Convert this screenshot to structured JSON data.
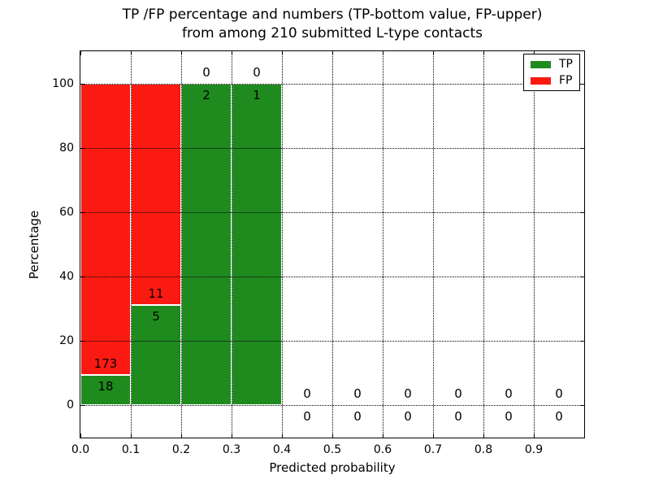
{
  "figure": {
    "title_line1": "TP /FP percentage and numbers (TP-bottom value, FP-upper)",
    "title_line2": "from among 210 submitted L-type contacts"
  },
  "legend": {
    "position": "upper right",
    "tp_label": "TP",
    "fp_label": "FP"
  },
  "chart_data": {
    "type": "bar",
    "stacked": true,
    "title": "TP /FP percentage and numbers (TP-bottom value, FP-upper) from among 210 submitted L-type contacts",
    "xlabel": "Predicted probability",
    "ylabel": "Percentage",
    "xlim": [
      0.0,
      1.0
    ],
    "ylim": [
      -10,
      110
    ],
    "bin_width": 0.1,
    "x_tick_labels": [
      "0.0",
      "0.1",
      "0.2",
      "0.3",
      "0.4",
      "0.5",
      "0.6",
      "0.7",
      "0.8",
      "0.9"
    ],
    "y_tick_values": [
      0,
      20,
      40,
      60,
      80,
      100
    ],
    "grid": {
      "style": "dotted",
      "color": "#000000",
      "on": true
    },
    "total_contacts": 210,
    "categories": [
      "0.0-0.1",
      "0.1-0.2",
      "0.2-0.3",
      "0.3-0.4",
      "0.4-0.5",
      "0.5-0.6",
      "0.6-0.7",
      "0.7-0.8",
      "0.8-0.9",
      "0.9-1.0"
    ],
    "series": [
      {
        "name": "TP",
        "color": "#1f8b1f",
        "counts": [
          18,
          5,
          2,
          1,
          0,
          0,
          0,
          0,
          0,
          0
        ],
        "pct": [
          9.42,
          31.25,
          100,
          100,
          0,
          0,
          0,
          0,
          0,
          0
        ]
      },
      {
        "name": "FP",
        "color": "#fb1a12",
        "counts": [
          173,
          11,
          0,
          0,
          0,
          0,
          0,
          0,
          0,
          0
        ],
        "pct": [
          90.58,
          68.75,
          0,
          0,
          0,
          0,
          0,
          0,
          0,
          0
        ]
      }
    ],
    "legend_position": "upper right",
    "bar_edge_color": "#ffffff"
  }
}
